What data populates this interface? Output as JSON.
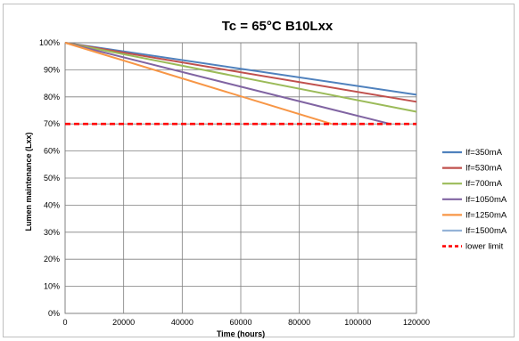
{
  "chart_data": {
    "type": "line",
    "title": "Tc = 65°C B10Lxx",
    "xlabel": "Time (hours)",
    "ylabel": "Lumen maintenance (Lxx)",
    "xlim": [
      0,
      120000
    ],
    "ylim": [
      0,
      100
    ],
    "x_ticks": [
      "0",
      "20000",
      "40000",
      "60000",
      "80000",
      "100000",
      "120000"
    ],
    "y_ticks": [
      "0%",
      "10%",
      "20%",
      "30%",
      "40%",
      "50%",
      "60%",
      "70%",
      "80%",
      "90%",
      "100%"
    ],
    "x_tick_values": [
      0,
      20000,
      40000,
      60000,
      80000,
      100000,
      120000
    ],
    "y_tick_values": [
      0,
      10,
      20,
      30,
      40,
      50,
      60,
      70,
      80,
      90,
      100
    ],
    "grid": true,
    "legend_position": "right",
    "series": [
      {
        "name": "If=350mA",
        "color": "#4f81bd",
        "x": [
          0,
          120000
        ],
        "y": [
          100,
          80.8
        ]
      },
      {
        "name": "If=530mA",
        "color": "#c0504d",
        "x": [
          0,
          120000
        ],
        "y": [
          100,
          78.2
        ]
      },
      {
        "name": "If=700mA",
        "color": "#9bbb59",
        "x": [
          0,
          120000
        ],
        "y": [
          100,
          74.5
        ]
      },
      {
        "name": "If=1050mA",
        "color": "#8064a2",
        "x": [
          0,
          111000
        ],
        "y": [
          100,
          70
        ]
      },
      {
        "name": "If=1250mA",
        "color": "#f79646",
        "x": [
          0,
          91000
        ],
        "y": [
          100,
          70
        ]
      },
      {
        "name": "If=1500mA",
        "color": "#95b3d7",
        "x": [],
        "y": []
      },
      {
        "name": "lower limit",
        "color": "#ff0000",
        "dashed": true,
        "x": [
          0,
          120000
        ],
        "y": [
          70,
          70
        ]
      }
    ]
  }
}
